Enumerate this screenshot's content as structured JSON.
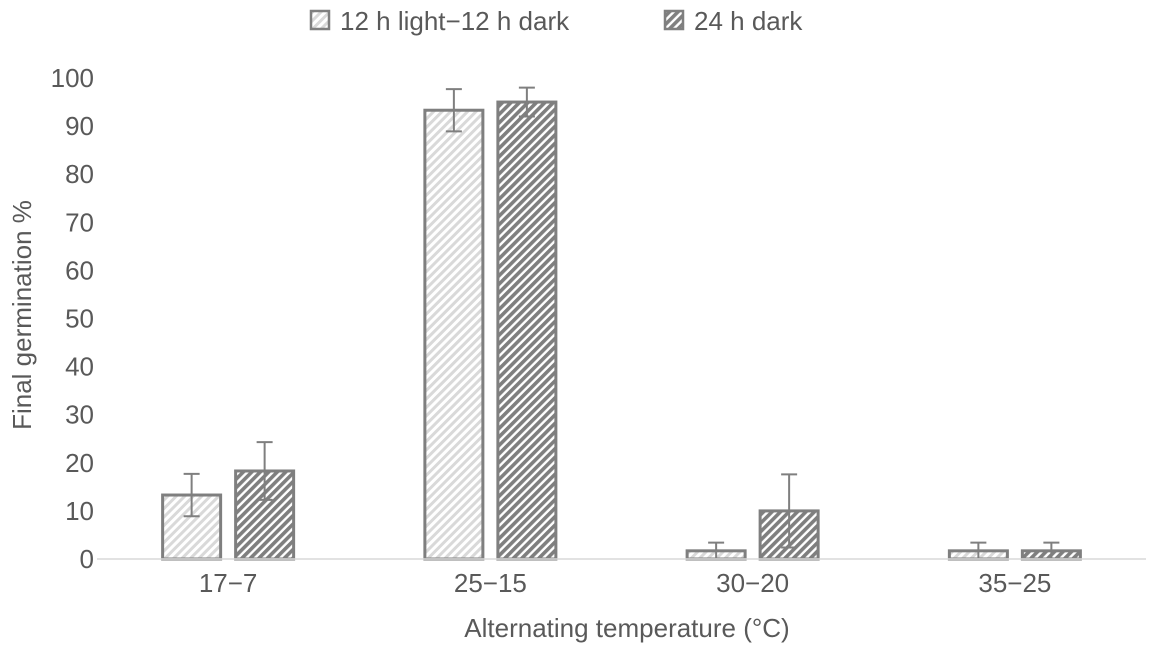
{
  "chart_data": {
    "type": "bar",
    "title": "",
    "xlabel": "Alternating temperature (°C)",
    "ylabel": "Final germination %",
    "categories": [
      "17−7",
      "25−15",
      "30−20",
      "35−25"
    ],
    "series": [
      {
        "name": "12 h light−12 h dark",
        "values": [
          13.3,
          93.3,
          1.7,
          1.7
        ],
        "error": [
          4.4,
          4.4,
          1.7,
          1.7
        ],
        "fill": "#d9d9d9",
        "pattern": "light-diagonal-stripes"
      },
      {
        "name": "24 h dark",
        "values": [
          18.3,
          95.0,
          10.0,
          1.7
        ],
        "error": [
          6.0,
          3.0,
          7.6,
          1.7
        ],
        "fill": "#7f7f7f",
        "pattern": "dark-diagonal-stripes"
      }
    ],
    "ylim": [
      0,
      100
    ],
    "yticks": [
      0,
      10,
      20,
      30,
      40,
      50,
      60,
      70,
      80,
      90,
      100
    ],
    "grid": false,
    "legend_position": "top-center",
    "colors": {
      "bar_outline": "#7f7f7f",
      "text": "#595959",
      "axis": "#d9d9d9",
      "error_bar": "#7f7f7f"
    }
  }
}
